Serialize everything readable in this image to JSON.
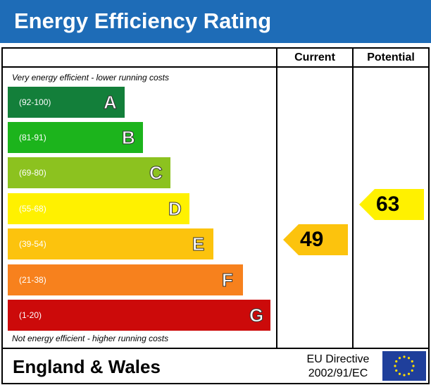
{
  "header": {
    "title": "Energy Efficiency Rating"
  },
  "columns": {
    "current_label": "Current",
    "potential_label": "Potential"
  },
  "notes": {
    "top": "Very energy efficient - lower running costs",
    "bottom": "Not energy efficient - higher running costs"
  },
  "footer": {
    "region": "England & Wales",
    "directive_line1": "EU Directive",
    "directive_line2": "2002/91/EC"
  },
  "colors": {
    "title_bar": "#1e6cb7",
    "flag_blue": "#1f3f9b",
    "flag_star": "#ffde00",
    "rating_arrow": "#fcc30d"
  },
  "chart_data": {
    "type": "bar",
    "categories": [
      "A",
      "B",
      "C",
      "D",
      "E",
      "F",
      "G"
    ],
    "bands": [
      {
        "letter": "A",
        "range": "(92-100)",
        "color": "#137f3a"
      },
      {
        "letter": "B",
        "range": "(81-91)",
        "color": "#1cb41c"
      },
      {
        "letter": "C",
        "range": "(69-80)",
        "color": "#8cc21f"
      },
      {
        "letter": "D",
        "range": "(55-68)",
        "color": "#fff100"
      },
      {
        "letter": "E",
        "range": "(39-54)",
        "color": "#fcc30d"
      },
      {
        "letter": "F",
        "range": "(21-38)",
        "color": "#f7811d"
      },
      {
        "letter": "G",
        "range": "(1-20)",
        "color": "#cc0a0a"
      }
    ],
    "current": 49,
    "potential": 63
  }
}
